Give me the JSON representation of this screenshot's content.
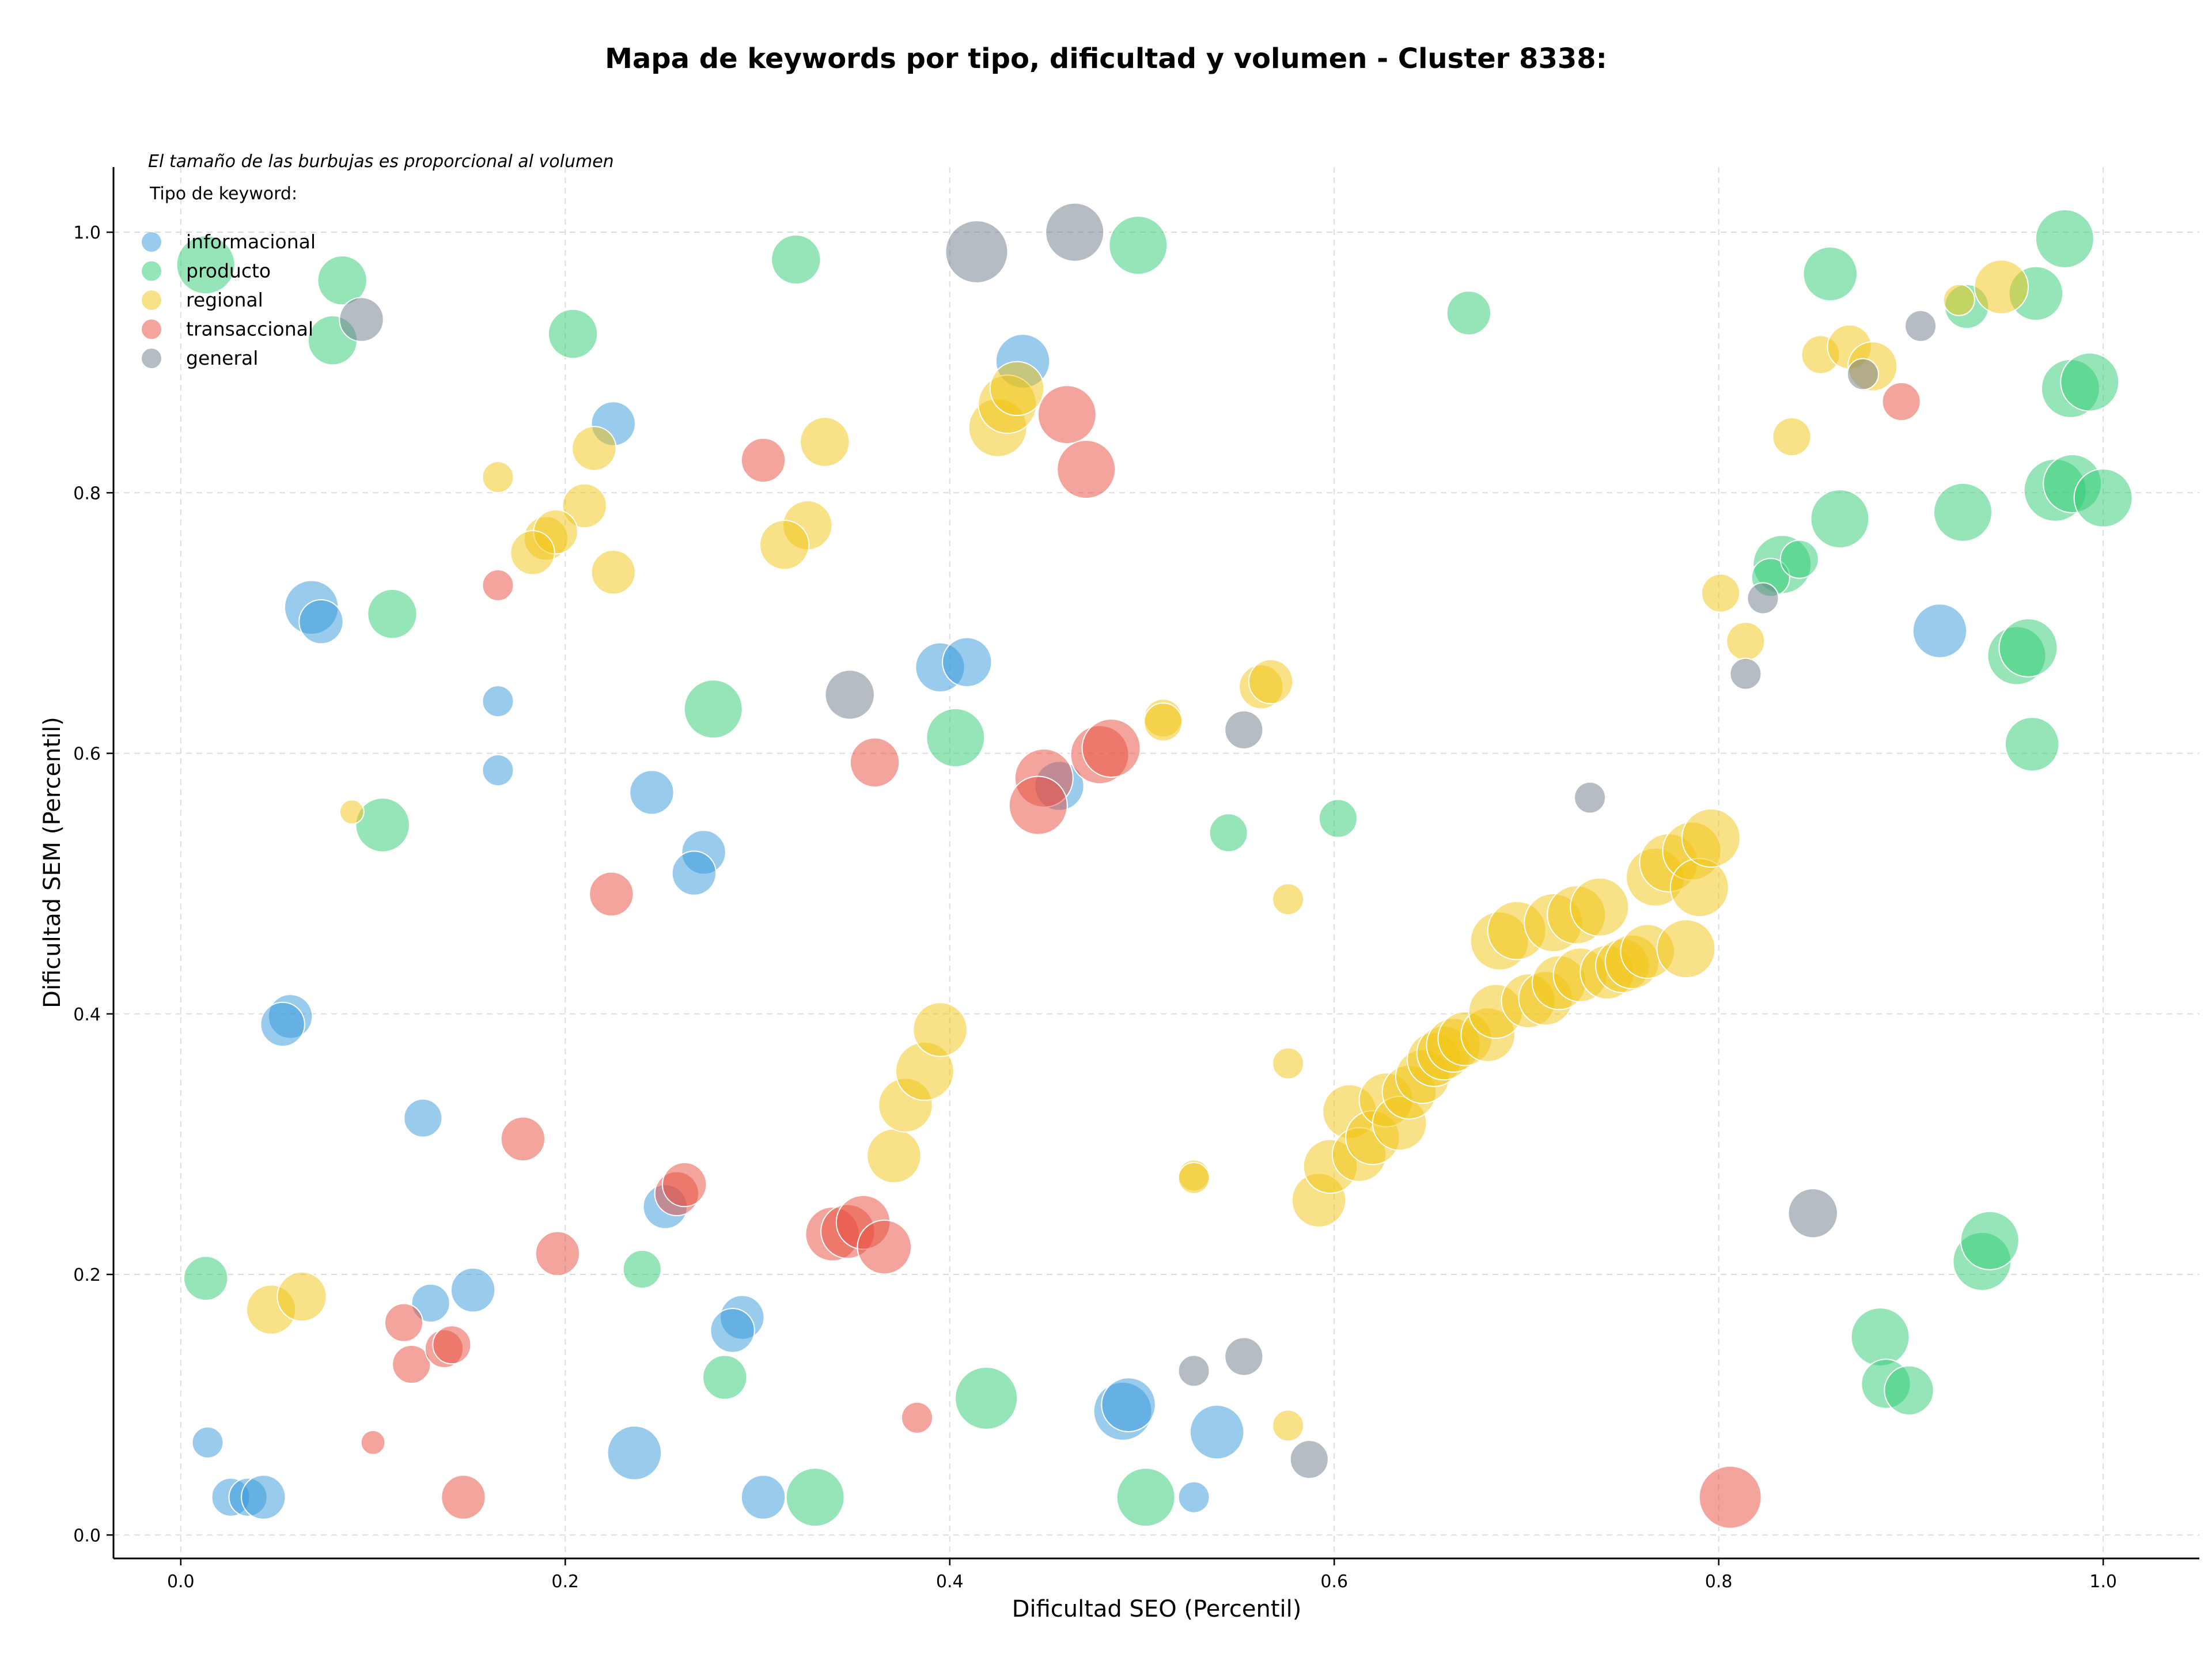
{
  "chart_data": {
    "type": "scatter",
    "title": "Mapa de keywords por tipo, dificultad y volumen - Cluster 8338:",
    "subtitle": "El tamaño de las burbujas es proporcional al volumen",
    "xlabel": "Dificultad SEO (Percentil)",
    "ylabel": "Dificultad SEM (Percentil)",
    "xlim": [
      -0.035,
      1.05
    ],
    "ylim": [
      -0.018,
      1.05
    ],
    "xticks": [
      "0.0",
      "0.2",
      "0.4",
      "0.6",
      "0.8",
      "1.0"
    ],
    "xtick_values": [
      0,
      0.2,
      0.4,
      0.6,
      0.8,
      1.0
    ],
    "yticks": [
      "0.0",
      "0.2",
      "0.4",
      "0.6",
      "0.8",
      "1.0"
    ],
    "ytick_values": [
      0,
      0.2,
      0.4,
      0.6,
      0.8,
      1.0
    ],
    "grid": true,
    "legend": {
      "title": "Tipo de keyword:",
      "placement": "top-left"
    },
    "series": [
      {
        "name": "informacional",
        "color": "#3498db",
        "points": [
          [
            0.068,
            0.712,
            3
          ],
          [
            0.073,
            0.701,
            2
          ],
          [
            0.225,
            0.853,
            2
          ],
          [
            0.165,
            0.64,
            1
          ],
          [
            0.165,
            0.587,
            1
          ],
          [
            0.245,
            0.57,
            2
          ],
          [
            0.272,
            0.524,
            2
          ],
          [
            0.267,
            0.508,
            2
          ],
          [
            0.057,
            0.398,
            2
          ],
          [
            0.053,
            0.392,
            2
          ],
          [
            0.126,
            0.32,
            1.5
          ],
          [
            0.252,
            0.252,
            2
          ],
          [
            0.13,
            0.178,
            1.5
          ],
          [
            0.152,
            0.188,
            2
          ],
          [
            0.292,
            0.167,
            2
          ],
          [
            0.287,
            0.157,
            2
          ],
          [
            0.014,
            0.071,
            1
          ],
          [
            0.026,
            0.029,
            1.5
          ],
          [
            0.035,
            0.029,
            1.5
          ],
          [
            0.043,
            0.029,
            2
          ],
          [
            0.236,
            0.063,
            3
          ],
          [
            0.303,
            0.029,
            2
          ],
          [
            0.438,
            0.901,
            3
          ],
          [
            0.395,
            0.666,
            2.5
          ],
          [
            0.409,
            0.67,
            2.5
          ],
          [
            0.457,
            0.575,
            2.5
          ],
          [
            0.49,
            0.095,
            3.5
          ],
          [
            0.493,
            0.1,
            3
          ],
          [
            0.539,
            0.079,
            3
          ],
          [
            0.527,
            0.029,
            1
          ],
          [
            0.915,
            0.694,
            3
          ]
        ]
      },
      {
        "name": "producto",
        "color": "#2ecc71",
        "points": [
          [
            0.013,
            0.975,
            3.5
          ],
          [
            0.084,
            0.963,
            2.5
          ],
          [
            0.079,
            0.917,
            2.5
          ],
          [
            0.204,
            0.922,
            2.5
          ],
          [
            0.11,
            0.707,
            2.5
          ],
          [
            0.105,
            0.545,
            3
          ],
          [
            0.32,
            0.979,
            2.5
          ],
          [
            0.498,
            0.99,
            3.5
          ],
          [
            0.277,
            0.634,
            3.5
          ],
          [
            0.403,
            0.612,
            3.5
          ],
          [
            0.24,
            0.204,
            1.5
          ],
          [
            0.283,
            0.121,
            2
          ],
          [
            0.013,
            0.197,
            2
          ],
          [
            0.33,
            0.029,
            3.5
          ],
          [
            0.419,
            0.105,
            4
          ],
          [
            0.502,
            0.029,
            3.5
          ],
          [
            0.545,
            0.539,
            1.5
          ],
          [
            0.602,
            0.55,
            1.5
          ],
          [
            0.67,
            0.938,
            2
          ],
          [
            0.858,
            0.968,
            3
          ],
          [
            0.863,
            0.78,
            3.5
          ],
          [
            0.833,
            0.745,
            3.5
          ],
          [
            0.827,
            0.735,
            1.5
          ],
          [
            0.842,
            0.749,
            1.5
          ],
          [
            0.927,
            0.785,
            3.5
          ],
          [
            0.929,
            0.943,
            2
          ],
          [
            0.965,
            0.953,
            3
          ],
          [
            0.98,
            0.995,
            3.5
          ],
          [
            0.983,
            0.88,
            3.5
          ],
          [
            0.993,
            0.885,
            3.5
          ],
          [
            0.975,
            0.802,
            4
          ],
          [
            0.984,
            0.807,
            3.5
          ],
          [
            1.0,
            0.796,
            3.5
          ],
          [
            0.955,
            0.675,
            3.5
          ],
          [
            0.961,
            0.681,
            3.5
          ],
          [
            0.963,
            0.607,
            3
          ],
          [
            0.884,
            0.152,
            3.5
          ],
          [
            0.887,
            0.116,
            2.5
          ],
          [
            0.899,
            0.111,
            2.5
          ],
          [
            0.937,
            0.21,
            3.5
          ],
          [
            0.941,
            0.226,
            3.5
          ]
        ]
      },
      {
        "name": "regional",
        "color": "#f1c40f",
        "points": [
          [
            0.165,
            0.812,
            1
          ],
          [
            0.215,
            0.834,
            2
          ],
          [
            0.21,
            0.79,
            2
          ],
          [
            0.19,
            0.765,
            2
          ],
          [
            0.195,
            0.77,
            2
          ],
          [
            0.183,
            0.754,
            2
          ],
          [
            0.225,
            0.739,
            2
          ],
          [
            0.089,
            0.555,
            0.6
          ],
          [
            0.335,
            0.839,
            2.5
          ],
          [
            0.326,
            0.775,
            2.5
          ],
          [
            0.314,
            0.76,
            2.5
          ],
          [
            0.425,
            0.85,
            3.5
          ],
          [
            0.43,
            0.868,
            3.5
          ],
          [
            0.435,
            0.88,
            3
          ],
          [
            0.047,
            0.173,
            2.5
          ],
          [
            0.063,
            0.183,
            2.5
          ],
          [
            0.371,
            0.291,
            3
          ],
          [
            0.377,
            0.33,
            3
          ],
          [
            0.387,
            0.356,
            3.5
          ],
          [
            0.395,
            0.388,
            3
          ],
          [
            0.511,
            0.627,
            1.5
          ],
          [
            0.511,
            0.624,
            1.5
          ],
          [
            0.527,
            0.276,
            1
          ],
          [
            0.527,
            0.274,
            1
          ],
          [
            0.562,
            0.651,
            2
          ],
          [
            0.567,
            0.655,
            2
          ],
          [
            0.576,
            0.488,
            1
          ],
          [
            0.576,
            0.362,
            1
          ],
          [
            0.576,
            0.084,
            1
          ],
          [
            0.592,
            0.257,
            3
          ],
          [
            0.598,
            0.283,
            3
          ],
          [
            0.608,
            0.325,
            3
          ],
          [
            0.613,
            0.292,
            3
          ],
          [
            0.62,
            0.305,
            3
          ],
          [
            0.627,
            0.334,
            3
          ],
          [
            0.634,
            0.316,
            3
          ],
          [
            0.639,
            0.34,
            3
          ],
          [
            0.646,
            0.352,
            3
          ],
          [
            0.652,
            0.365,
            3
          ],
          [
            0.657,
            0.37,
            3
          ],
          [
            0.662,
            0.376,
            3
          ],
          [
            0.668,
            0.381,
            3
          ],
          [
            0.68,
            0.384,
            3
          ],
          [
            0.684,
            0.402,
            3
          ],
          [
            0.686,
            0.456,
            3.5
          ],
          [
            0.695,
            0.464,
            3.5
          ],
          [
            0.701,
            0.41,
            3
          ],
          [
            0.71,
            0.412,
            3
          ],
          [
            0.714,
            0.47,
            3.5
          ],
          [
            0.717,
            0.424,
            3
          ],
          [
            0.726,
            0.476,
            3.5
          ],
          [
            0.728,
            0.43,
            3
          ],
          [
            0.738,
            0.482,
            3.5
          ],
          [
            0.742,
            0.432,
            3
          ],
          [
            0.75,
            0.437,
            3
          ],
          [
            0.755,
            0.44,
            3
          ],
          [
            0.763,
            0.448,
            3
          ],
          [
            0.767,
            0.505,
            3.5
          ],
          [
            0.774,
            0.516,
            3.5
          ],
          [
            0.783,
            0.45,
            3.5
          ],
          [
            0.786,
            0.525,
            3.5
          ],
          [
            0.79,
            0.497,
            3.5
          ],
          [
            0.796,
            0.535,
            3.5
          ],
          [
            0.801,
            0.723,
            1.5
          ],
          [
            0.814,
            0.686,
            1.5
          ],
          [
            0.838,
            0.843,
            1.5
          ],
          [
            0.853,
            0.906,
            1.5
          ],
          [
            0.868,
            0.912,
            2
          ],
          [
            0.88,
            0.897,
            2.5
          ],
          [
            0.925,
            0.948,
            1
          ],
          [
            0.947,
            0.958,
            3
          ]
        ]
      },
      {
        "name": "transaccional",
        "color": "#e74c3c",
        "points": [
          [
            0.165,
            0.729,
            1
          ],
          [
            0.224,
            0.492,
            2
          ],
          [
            0.178,
            0.304,
            2
          ],
          [
            0.196,
            0.216,
            2
          ],
          [
            0.116,
            0.163,
            1.5
          ],
          [
            0.12,
            0.131,
            1.5
          ],
          [
            0.137,
            0.143,
            1.5
          ],
          [
            0.141,
            0.146,
            1.5
          ],
          [
            0.1,
            0.071,
            0.6
          ],
          [
            0.147,
            0.029,
            2
          ],
          [
            0.303,
            0.825,
            2
          ],
          [
            0.361,
            0.593,
            2.5
          ],
          [
            0.258,
            0.262,
            2
          ],
          [
            0.262,
            0.269,
            2
          ],
          [
            0.339,
            0.231,
            3
          ],
          [
            0.347,
            0.233,
            3
          ],
          [
            0.355,
            0.24,
            3
          ],
          [
            0.366,
            0.221,
            3
          ],
          [
            0.383,
            0.09,
            1
          ],
          [
            0.461,
            0.86,
            3.5
          ],
          [
            0.471,
            0.818,
            3.5
          ],
          [
            0.449,
            0.581,
            3.5
          ],
          [
            0.446,
            0.56,
            3.5
          ],
          [
            0.478,
            0.599,
            3.5
          ],
          [
            0.484,
            0.604,
            3.5
          ],
          [
            0.895,
            0.87,
            1.5
          ],
          [
            0.806,
            0.029,
            4
          ]
        ]
      },
      {
        "name": "general",
        "color": "#6c7a89",
        "points": [
          [
            0.094,
            0.933,
            2
          ],
          [
            0.414,
            0.985,
            4
          ],
          [
            0.465,
            1.0,
            3.5
          ],
          [
            0.348,
            0.645,
            2.5
          ],
          [
            0.553,
            0.618,
            1.5
          ],
          [
            0.733,
            0.566,
            1
          ],
          [
            0.527,
            0.126,
            1
          ],
          [
            0.553,
            0.137,
            1.5
          ],
          [
            0.587,
            0.058,
            1.5
          ],
          [
            0.823,
            0.719,
            1
          ],
          [
            0.814,
            0.661,
            1
          ],
          [
            0.849,
            0.247,
            2.5
          ],
          [
            0.875,
            0.891,
            1
          ],
          [
            0.905,
            0.928,
            1
          ]
        ]
      }
    ]
  }
}
